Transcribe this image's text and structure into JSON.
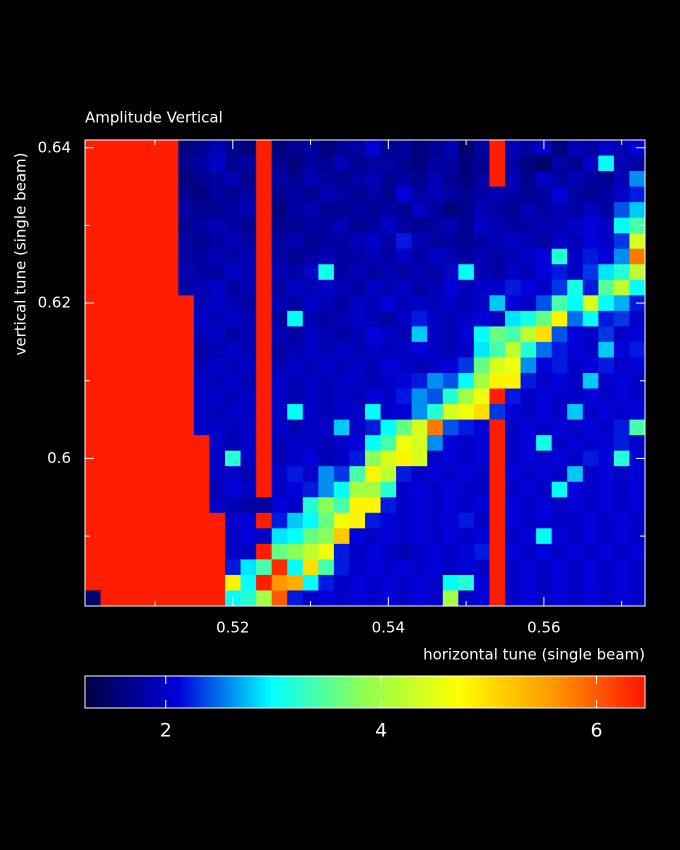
{
  "chart_data": {
    "type": "heatmap",
    "title": "Amplitude Vertical",
    "xlabel": "horizontal tune (single beam)",
    "ylabel": "vertical tune (single beam)",
    "xlim": [
      0.501,
      0.573
    ],
    "ylim": [
      0.581,
      0.641
    ],
    "xticks": [
      0.52,
      0.54,
      0.56
    ],
    "yticks": [
      0.6,
      0.62,
      0.64
    ],
    "xminorticks": [
      0.51,
      0.53,
      0.55,
      0.57
    ],
    "yminorticks": [
      0.59,
      0.61,
      0.63
    ],
    "x": [
      0.502,
      0.504,
      0.506,
      0.508,
      0.51,
      0.512,
      0.514,
      0.516,
      0.518,
      0.52,
      0.522,
      0.524,
      0.526,
      0.528,
      0.53,
      0.532,
      0.534,
      0.536,
      0.538,
      0.54,
      0.542,
      0.544,
      0.546,
      0.548,
      0.55,
      0.552,
      0.554,
      0.556,
      0.558,
      0.56,
      0.562,
      0.564,
      0.566,
      0.568,
      0.57,
      0.572
    ],
    "y": [
      0.64,
      0.638,
      0.636,
      0.634,
      0.632,
      0.63,
      0.628,
      0.626,
      0.624,
      0.622,
      0.62,
      0.618,
      0.616,
      0.614,
      0.612,
      0.61,
      0.608,
      0.606,
      0.604,
      0.602,
      0.6,
      0.598,
      0.596,
      0.594,
      0.592,
      0.59,
      0.588,
      0.586,
      0.584,
      0.582
    ],
    "z": [
      [
        6.4,
        6.4,
        6.4,
        6.4,
        6.4,
        6.4,
        1.6,
        1.7,
        1.9,
        1.7,
        1.6,
        6.4,
        1.6,
        1.7,
        1.8,
        1.6,
        1.7,
        1.8,
        2.1,
        1.7,
        1.8,
        1.6,
        1.7,
        1.9,
        1.5,
        1.8,
        6.4,
        1.9,
        1.8,
        2.0,
        1.6,
        1.9,
        1.8,
        2.0,
        1.9,
        2.1
      ],
      [
        6.4,
        6.4,
        6.4,
        6.4,
        6.4,
        6.4,
        1.7,
        1.8,
        2.0,
        1.7,
        1.8,
        6.4,
        1.7,
        1.6,
        1.8,
        1.7,
        1.9,
        1.7,
        1.8,
        1.8,
        1.7,
        1.6,
        1.8,
        1.8,
        1.6,
        1.7,
        6.4,
        1.8,
        1.6,
        1.5,
        1.8,
        1.7,
        2.0,
        3.0,
        1.9,
        1.8
      ],
      [
        6.4,
        6.4,
        6.4,
        6.4,
        6.4,
        6.4,
        1.6,
        1.7,
        1.8,
        1.9,
        1.7,
        6.4,
        1.8,
        1.7,
        1.9,
        1.8,
        1.7,
        1.8,
        1.9,
        1.7,
        1.8,
        1.7,
        1.9,
        1.7,
        1.6,
        1.8,
        6.4,
        1.9,
        1.7,
        2.0,
        1.8,
        1.9,
        1.8,
        1.7,
        1.9,
        2.6
      ],
      [
        6.4,
        6.4,
        6.4,
        6.4,
        6.4,
        6.4,
        1.7,
        1.6,
        1.8,
        1.7,
        1.8,
        6.4,
        1.7,
        1.8,
        1.7,
        1.9,
        1.8,
        1.7,
        1.8,
        1.7,
        2.1,
        1.8,
        1.9,
        1.8,
        1.7,
        1.8,
        1.9,
        1.8,
        1.7,
        1.8,
        2.1,
        1.8,
        1.7,
        1.8,
        2.0,
        2.2
      ],
      [
        6.4,
        6.4,
        6.4,
        6.4,
        6.4,
        6.4,
        1.8,
        1.7,
        1.7,
        1.8,
        1.9,
        6.4,
        1.6,
        1.8,
        1.9,
        1.7,
        1.7,
        1.8,
        1.7,
        1.8,
        1.7,
        2.0,
        1.8,
        1.6,
        1.7,
        1.9,
        1.8,
        1.7,
        1.9,
        1.8,
        1.9,
        1.8,
        2.0,
        1.8,
        2.4,
        2.8
      ],
      [
        6.4,
        6.4,
        6.4,
        6.4,
        6.4,
        6.4,
        1.7,
        1.8,
        1.9,
        1.8,
        1.7,
        6.4,
        1.7,
        1.7,
        1.8,
        1.8,
        1.9,
        1.7,
        1.8,
        2.0,
        1.8,
        1.7,
        1.8,
        1.9,
        1.7,
        2.0,
        1.9,
        1.8,
        1.8,
        1.9,
        1.9,
        2.0,
        2.1,
        2.0,
        3.0,
        3.4
      ],
      [
        6.4,
        6.4,
        6.4,
        6.4,
        6.4,
        6.4,
        1.8,
        1.7,
        1.8,
        1.9,
        1.8,
        6.4,
        1.8,
        1.9,
        1.7,
        1.8,
        1.8,
        1.9,
        2.0,
        1.8,
        2.2,
        1.9,
        1.8,
        1.8,
        1.7,
        1.8,
        1.9,
        2.0,
        1.9,
        1.8,
        2.0,
        1.9,
        2.1,
        2.0,
        2.3,
        4.4
      ],
      [
        6.4,
        6.4,
        6.4,
        6.4,
        6.4,
        6.4,
        1.8,
        1.8,
        1.9,
        1.8,
        1.9,
        6.4,
        1.8,
        1.7,
        1.8,
        1.9,
        1.8,
        1.8,
        1.9,
        1.8,
        2.0,
        1.8,
        2.0,
        1.9,
        1.8,
        1.9,
        1.8,
        1.9,
        2.0,
        2.1,
        3.2,
        2.0,
        2.2,
        2.1,
        2.6,
        5.8
      ],
      [
        6.4,
        6.4,
        6.4,
        6.4,
        6.4,
        6.4,
        1.9,
        1.8,
        1.8,
        2.0,
        1.9,
        6.4,
        1.9,
        1.8,
        2.0,
        3.1,
        1.8,
        1.9,
        1.8,
        1.9,
        1.8,
        1.9,
        1.8,
        2.0,
        3.0,
        1.9,
        1.8,
        2.0,
        1.9,
        2.1,
        2.2,
        2.0,
        2.3,
        2.9,
        3.2,
        4.2
      ],
      [
        6.4,
        6.4,
        6.4,
        6.4,
        6.4,
        6.4,
        1.8,
        1.9,
        2.0,
        1.8,
        1.9,
        6.4,
        1.8,
        2.0,
        1.9,
        2.0,
        1.9,
        1.8,
        2.0,
        1.9,
        2.0,
        1.8,
        1.9,
        2.1,
        1.9,
        2.0,
        2.0,
        2.2,
        2.1,
        2.0,
        2.3,
        3.1,
        2.2,
        3.5,
        4.2,
        3.0
      ],
      [
        6.4,
        6.4,
        6.4,
        6.4,
        6.4,
        6.4,
        6.4,
        1.9,
        2.0,
        1.9,
        1.8,
        6.4,
        1.9,
        1.8,
        2.0,
        1.9,
        1.8,
        2.0,
        1.9,
        2.1,
        1.9,
        2.0,
        1.9,
        2.0,
        1.9,
        2.0,
        2.8,
        2.1,
        2.0,
        2.4,
        3.4,
        3.0,
        4.4,
        3.0,
        2.7,
        2.2
      ],
      [
        6.4,
        6.4,
        6.4,
        6.4,
        6.4,
        6.4,
        6.4,
        2.0,
        1.9,
        2.0,
        1.9,
        6.4,
        1.8,
        3.0,
        1.9,
        1.8,
        1.9,
        2.0,
        1.9,
        1.8,
        2.0,
        2.2,
        2.0,
        1.9,
        2.0,
        2.1,
        2.0,
        2.9,
        3.1,
        3.6,
        4.8,
        2.5,
        3.0,
        2.2,
        2.3,
        2.0
      ],
      [
        6.4,
        6.4,
        6.4,
        6.4,
        6.4,
        6.4,
        6.4,
        1.9,
        2.0,
        1.8,
        1.9,
        6.4,
        1.9,
        1.8,
        2.0,
        1.9,
        1.8,
        1.9,
        2.1,
        2.0,
        1.9,
        2.8,
        2.0,
        1.9,
        2.1,
        3.0,
        3.6,
        3.4,
        4.2,
        5.0,
        2.4,
        2.1,
        2.0,
        2.3,
        2.0,
        2.1
      ],
      [
        6.4,
        6.4,
        6.4,
        6.4,
        6.4,
        6.4,
        6.4,
        1.8,
        1.9,
        2.0,
        1.9,
        6.4,
        1.8,
        1.9,
        2.0,
        1.9,
        2.0,
        1.9,
        2.0,
        1.9,
        2.0,
        2.1,
        2.0,
        1.9,
        2.0,
        2.9,
        3.4,
        4.2,
        3.2,
        2.5,
        2.2,
        2.1,
        2.0,
        2.8,
        2.1,
        2.2
      ],
      [
        6.4,
        6.4,
        6.4,
        6.4,
        6.4,
        6.4,
        6.4,
        1.9,
        2.0,
        1.9,
        2.0,
        6.4,
        1.9,
        2.0,
        1.9,
        2.0,
        1.9,
        2.0,
        1.9,
        2.1,
        2.0,
        1.9,
        2.0,
        2.1,
        2.3,
        3.6,
        4.4,
        4.6,
        2.6,
        2.1,
        2.2,
        2.0,
        2.1,
        2.2,
        2.0,
        2.1
      ],
      [
        6.4,
        6.4,
        6.4,
        6.4,
        6.4,
        6.4,
        6.4,
        2.0,
        1.9,
        2.0,
        1.9,
        6.4,
        2.0,
        1.9,
        2.0,
        1.9,
        2.0,
        2.0,
        1.9,
        2.0,
        2.1,
        2.2,
        2.6,
        2.4,
        3.0,
        4.0,
        4.8,
        4.8,
        2.2,
        2.0,
        2.1,
        2.0,
        2.8,
        2.0,
        2.1,
        2.0
      ],
      [
        6.4,
        6.4,
        6.4,
        6.4,
        6.4,
        6.4,
        6.4,
        2.0,
        2.0,
        1.9,
        2.0,
        6.4,
        2.0,
        1.9,
        2.0,
        1.9,
        2.0,
        1.9,
        2.1,
        2.0,
        2.2,
        2.6,
        2.4,
        3.2,
        4.0,
        4.6,
        6.4,
        2.2,
        2.0,
        2.1,
        2.0,
        2.0,
        2.1,
        2.0,
        2.1,
        2.0
      ],
      [
        6.4,
        6.4,
        6.4,
        6.4,
        6.4,
        6.4,
        6.4,
        2.0,
        1.9,
        2.0,
        2.0,
        6.4,
        2.0,
        3.0,
        2.0,
        1.9,
        2.0,
        2.0,
        3.0,
        2.0,
        2.1,
        2.6,
        3.2,
        4.4,
        4.6,
        5.0,
        2.3,
        2.1,
        2.0,
        2.1,
        2.0,
        2.8,
        2.0,
        2.1,
        2.0,
        2.1
      ],
      [
        6.4,
        6.4,
        6.4,
        6.4,
        6.4,
        6.4,
        6.4,
        2.0,
        2.0,
        1.9,
        2.0,
        6.4,
        2.0,
        1.9,
        2.0,
        2.0,
        2.8,
        2.0,
        2.2,
        3.0,
        3.6,
        4.4,
        5.8,
        2.4,
        2.2,
        2.1,
        6.4,
        2.0,
        2.1,
        2.0,
        2.1,
        2.0,
        2.1,
        2.0,
        2.2,
        3.4
      ],
      [
        6.4,
        6.4,
        6.4,
        6.4,
        6.4,
        6.4,
        6.4,
        6.4,
        2.0,
        1.9,
        2.0,
        6.4,
        1.9,
        2.0,
        2.0,
        1.9,
        2.0,
        2.1,
        3.0,
        3.4,
        4.6,
        4.4,
        2.6,
        2.1,
        2.0,
        2.1,
        6.4,
        2.0,
        2.1,
        3.1,
        2.0,
        2.1,
        2.0,
        2.1,
        2.2,
        2.0
      ],
      [
        6.4,
        6.4,
        6.4,
        6.4,
        6.4,
        6.4,
        6.4,
        6.4,
        2.0,
        3.2,
        2.0,
        6.4,
        1.9,
        2.0,
        2.1,
        1.9,
        2.0,
        2.2,
        3.8,
        4.4,
        4.8,
        4.4,
        2.0,
        2.1,
        2.0,
        2.1,
        6.4,
        2.0,
        2.1,
        2.0,
        2.1,
        2.0,
        2.2,
        2.1,
        3.2,
        2.1
      ],
      [
        6.4,
        6.4,
        6.4,
        6.4,
        6.4,
        6.4,
        6.4,
        6.4,
        2.0,
        2.0,
        1.9,
        6.4,
        2.0,
        2.2,
        2.0,
        2.6,
        2.3,
        3.4,
        4.8,
        4.2,
        2.2,
        2.0,
        2.1,
        2.0,
        2.1,
        2.0,
        6.4,
        2.1,
        2.0,
        2.1,
        2.0,
        2.8,
        2.0,
        2.1,
        2.0,
        2.1
      ],
      [
        6.4,
        6.4,
        6.4,
        6.4,
        6.4,
        6.4,
        6.4,
        6.4,
        1.9,
        2.1,
        2.0,
        6.4,
        2.0,
        2.1,
        2.2,
        2.6,
        3.0,
        4.0,
        4.0,
        3.2,
        2.0,
        2.1,
        2.0,
        2.1,
        2.0,
        2.0,
        6.4,
        2.0,
        2.1,
        2.0,
        3.0,
        2.1,
        2.0,
        2.1,
        2.0,
        2.1
      ],
      [
        6.4,
        6.4,
        6.4,
        6.4,
        6.4,
        6.4,
        6.4,
        6.4,
        2.0,
        1.9,
        1.8,
        1.8,
        2.1,
        2.0,
        3.2,
        3.8,
        3.4,
        4.8,
        4.8,
        2.2,
        2.0,
        2.1,
        2.0,
        2.1,
        2.0,
        2.1,
        6.4,
        2.1,
        2.0,
        2.1,
        2.0,
        2.1,
        2.0,
        2.1,
        2.0,
        2.1
      ],
      [
        6.4,
        6.4,
        6.4,
        6.4,
        6.4,
        6.4,
        6.4,
        6.4,
        6.4,
        2.0,
        2.1,
        6.4,
        2.2,
        2.8,
        3.0,
        3.6,
        4.6,
        4.8,
        2.2,
        2.1,
        2.0,
        2.1,
        2.0,
        2.1,
        2.2,
        2.0,
        6.4,
        2.1,
        2.0,
        2.1,
        2.0,
        2.0,
        2.1,
        2.0,
        2.1,
        2.0
      ],
      [
        6.4,
        6.4,
        6.4,
        6.4,
        6.4,
        6.4,
        6.4,
        6.4,
        6.4,
        2.0,
        2.1,
        2.0,
        2.9,
        3.0,
        3.6,
        3.8,
        5.2,
        2.1,
        2.0,
        2.1,
        2.0,
        2.1,
        2.0,
        2.1,
        2.0,
        2.1,
        6.4,
        2.0,
        2.1,
        3.0,
        2.1,
        2.0,
        2.1,
        2.0,
        2.1,
        2.0
      ],
      [
        6.4,
        6.4,
        6.4,
        6.4,
        6.4,
        6.4,
        6.4,
        6.4,
        6.4,
        2.0,
        2.0,
        6.4,
        3.6,
        3.8,
        4.2,
        4.6,
        2.2,
        2.0,
        2.1,
        2.0,
        1.9,
        2.0,
        2.1,
        2.0,
        2.1,
        2.2,
        6.4,
        2.1,
        2.0,
        2.1,
        2.0,
        2.1,
        2.0,
        2.1,
        2.0,
        2.1
      ],
      [
        6.4,
        6.4,
        6.4,
        6.4,
        6.4,
        6.4,
        6.4,
        6.4,
        6.4,
        2.2,
        2.9,
        3.4,
        6.3,
        3.0,
        5.0,
        3.4,
        2.2,
        2.0,
        2.1,
        2.0,
        2.1,
        2.0,
        2.1,
        2.0,
        2.1,
        2.0,
        6.4,
        2.0,
        2.1,
        2.0,
        2.1,
        2.0,
        2.1,
        2.0,
        2.1,
        2.0
      ],
      [
        6.4,
        6.4,
        6.4,
        6.4,
        6.4,
        6.4,
        6.4,
        6.4,
        6.4,
        4.8,
        3.0,
        6.4,
        5.6,
        5.4,
        3.0,
        2.2,
        2.0,
        2.1,
        2.0,
        2.1,
        2.0,
        2.1,
        2.0,
        3.0,
        3.2,
        2.1,
        6.4,
        2.0,
        2.1,
        2.0,
        2.1,
        2.0,
        2.1,
        2.0,
        2.1,
        2.0
      ],
      [
        1.5,
        6.4,
        6.4,
        6.4,
        6.4,
        6.4,
        6.4,
        6.4,
        6.4,
        3.0,
        3.2,
        4.0,
        6.0,
        2.2,
        2.0,
        2.1,
        2.0,
        2.1,
        2.0,
        2.1,
        2.0,
        2.1,
        2.0,
        4.0,
        2.0,
        2.1,
        6.4,
        2.0,
        2.1,
        2.0,
        2.1,
        2.0,
        2.1,
        2.0,
        2.1,
        2.0
      ]
    ],
    "zlim": [
      1.25,
      6.45
    ],
    "zticks": [
      2,
      4,
      6
    ],
    "colorscale": [
      "#000040",
      "#0000dc",
      "#00ffff",
      "#90ff50",
      "#ffff00",
      "#ff9a00",
      "#ff1500"
    ]
  }
}
